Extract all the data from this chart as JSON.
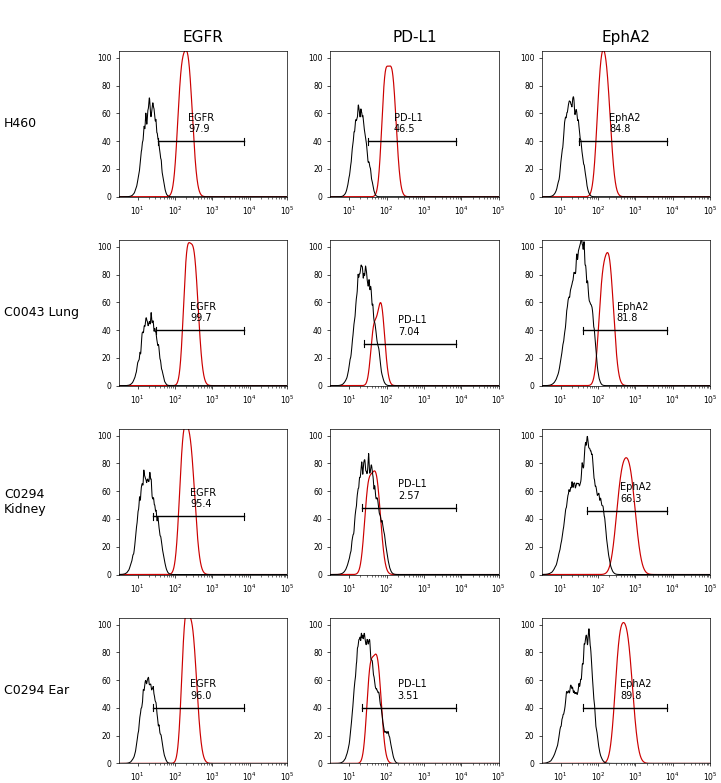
{
  "col_labels": [
    "EGFR",
    "PD-L1",
    "EphA2"
  ],
  "row_labels": [
    "H460",
    "C0043 Lung",
    "C0294\nKidney",
    "C0294 Ear"
  ],
  "annotations": [
    [
      "EGFR\n97.9",
      "PD-L1\n46.5",
      "EphA2\n84.8"
    ],
    [
      "EGFR\n99.7",
      "PD-L1\n7.04",
      "EphA2\n81.8"
    ],
    [
      "EGFR\n95.4",
      "PD-L1\n2.57",
      "EphA2\n66.3"
    ],
    [
      "EGFR\n96.0",
      "PD-L1\n3.51",
      "EphA2\n89.8"
    ]
  ],
  "black_color": "#000000",
  "red_color": "#cc0000",
  "bg_color": "#ffffff",
  "col_header_fontsize": 11,
  "row_label_fontsize": 9,
  "ann_fontsize": 7
}
